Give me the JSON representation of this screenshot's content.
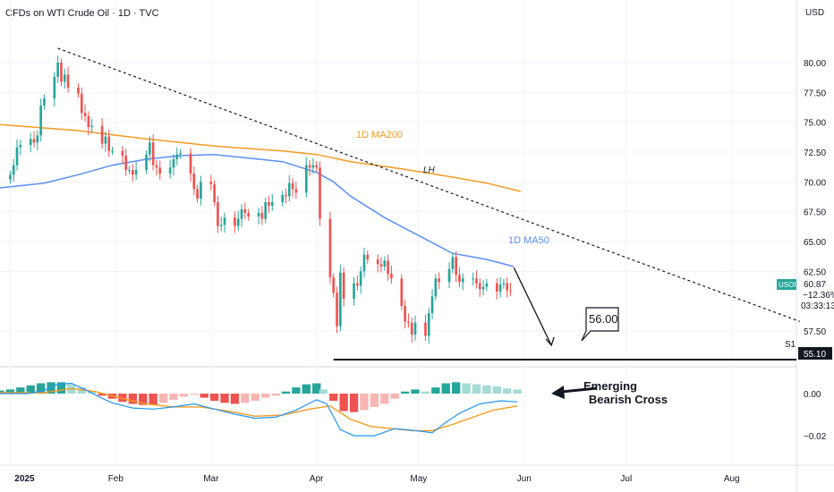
{
  "header": {
    "title": "CFDs on WTI Crude Oil · 1D · TVC",
    "currency": "USD"
  },
  "colors": {
    "up": "#26a69a",
    "down": "#ef5350",
    "ma50": "#5b8ff9",
    "ma200": "#f59a23",
    "histUpStrong": "#26a69a",
    "histUpWeak": "#a5dbd5",
    "histDownStrong": "#ef5350",
    "histDownWeak": "#f7b5b3"
  },
  "chart_data": [
    {
      "type": "candlestick",
      "title": "CFDs on WTI Crude Oil · 1D · TVC",
      "y_ticks": [
        "80.00",
        "77.50",
        "75.00",
        "72.50",
        "70.00",
        "67.50",
        "65.00",
        "62.50",
        "57.50"
      ],
      "ylim": [
        54.5,
        83.0
      ],
      "x_ticks": [
        "2025",
        "Feb",
        "Mar",
        "Apr",
        "May",
        "Jun",
        "Jul",
        "Aug"
      ],
      "x_tick_days": [
        0,
        31,
        59,
        90,
        120,
        151,
        181,
        212
      ],
      "xlim": [
        -3,
        231
      ],
      "closes": [
        [
          0,
          70.6
        ],
        [
          1,
          71.4
        ],
        [
          2,
          72.9
        ],
        [
          3,
          73.1
        ],
        [
          6,
          73.6
        ],
        [
          7,
          73.3
        ],
        [
          8,
          73.9
        ],
        [
          9,
          76.4
        ],
        [
          10,
          77.0
        ],
        [
          13,
          78.8
        ],
        [
          14,
          80.0
        ],
        [
          15,
          78.4
        ],
        [
          16,
          79.0
        ],
        [
          17,
          77.9
        ],
        [
          20,
          77.4
        ],
        [
          21,
          75.8
        ],
        [
          22,
          75.5
        ],
        [
          23,
          74.6
        ],
        [
          24,
          74.7
        ],
        [
          27,
          73.2
        ],
        [
          28,
          73.8
        ],
        [
          29,
          72.6
        ],
        [
          30,
          72.6
        ],
        [
          33,
          72.2
        ],
        [
          34,
          71.0
        ],
        [
          35,
          71.0
        ],
        [
          36,
          70.6
        ],
        [
          37,
          71.0
        ],
        [
          40,
          72.3
        ],
        [
          41,
          73.3
        ],
        [
          42,
          71.4
        ],
        [
          43,
          71.2
        ],
        [
          44,
          70.7
        ],
        [
          47,
          71.2
        ],
        [
          48,
          71.9
        ],
        [
          49,
          72.3
        ],
        [
          50,
          72.4
        ],
        [
          53,
          70.7
        ],
        [
          54,
          69.4
        ],
        [
          55,
          68.6
        ],
        [
          56,
          70.0
        ],
        [
          59,
          69.8
        ],
        [
          60,
          68.3
        ],
        [
          61,
          66.3
        ],
        [
          62,
          66.4
        ],
        [
          63,
          67.0
        ],
        [
          66,
          66.3
        ],
        [
          67,
          66.9
        ],
        [
          68,
          67.7
        ],
        [
          69,
          67.4
        ],
        [
          70,
          67.1
        ],
        [
          73,
          67.4
        ],
        [
          74,
          66.9
        ],
        [
          75,
          68.3
        ],
        [
          76,
          68.0
        ],
        [
          77,
          68.3
        ],
        [
          80,
          68.9
        ],
        [
          81,
          68.8
        ],
        [
          82,
          69.9
        ],
        [
          83,
          69.4
        ],
        [
          84,
          69.1
        ],
        [
          87,
          71.4
        ],
        [
          88,
          71.2
        ],
        [
          89,
          71.4
        ],
        [
          90,
          71.2
        ],
        [
          91,
          66.9
        ],
        [
          94,
          61.99
        ],
        [
          95,
          60.7
        ],
        [
          96,
          57.9
        ],
        [
          97,
          62.4
        ],
        [
          98,
          60.2
        ],
        [
          101,
          61.5
        ],
        [
          102,
          61.3
        ],
        [
          103,
          62.5
        ],
        [
          104,
          63.9
        ],
        [
          105,
          63.5
        ],
        [
          108,
          63.1
        ],
        [
          109,
          62.9
        ],
        [
          110,
          63.4
        ],
        [
          111,
          62.3
        ],
        [
          112,
          61.9
        ],
        [
          115,
          59.6
        ],
        [
          116,
          58.3
        ],
        [
          117,
          58.2
        ],
        [
          118,
          57.2
        ],
        [
          119,
          58.2
        ],
        [
          122,
          57.1
        ],
        [
          123,
          59.0
        ],
        [
          124,
          60.4
        ],
        [
          125,
          61.9
        ],
        [
          126,
          61.6
        ],
        [
          129,
          62.7
        ],
        [
          130,
          63.7
        ],
        [
          131,
          62.2
        ],
        [
          132,
          61.6
        ],
        [
          133,
          61.9
        ],
        [
          136,
          61.9
        ],
        [
          137,
          61.5
        ],
        [
          138,
          61.0
        ],
        [
          139,
          61.2
        ],
        [
          140,
          61.5
        ],
        [
          143,
          60.8
        ],
        [
          144,
          61.4
        ],
        [
          145,
          61.5
        ],
        [
          146,
          60.9
        ],
        [
          147,
          60.87
        ]
      ],
      "series": [
        {
          "name": "1D MA200",
          "points": [
            [
              -3,
              74.8
            ],
            [
              20,
              74.3
            ],
            [
              40,
              73.6
            ],
            [
              60,
              73.0
            ],
            [
              80,
              72.6
            ],
            [
              90,
              72.3
            ],
            [
              100,
              71.7
            ],
            [
              115,
              71.1
            ],
            [
              130,
              70.4
            ],
            [
              140,
              69.9
            ],
            [
              150,
              69.2
            ]
          ]
        },
        {
          "name": "1D MA50",
          "points": [
            [
              -3,
              69.5
            ],
            [
              10,
              69.9
            ],
            [
              20,
              70.6
            ],
            [
              30,
              71.4
            ],
            [
              40,
              71.9
            ],
            [
              50,
              72.2
            ],
            [
              60,
              72.3
            ],
            [
              70,
              72.0
            ],
            [
              80,
              71.7
            ],
            [
              90,
              70.8
            ],
            [
              95,
              70.0
            ],
            [
              100,
              68.8
            ],
            [
              110,
              67.0
            ],
            [
              120,
              65.5
            ],
            [
              130,
              64.0
            ],
            [
              140,
              63.5
            ],
            [
              148,
              62.9
            ]
          ]
        }
      ],
      "annotations": [
        "1D MA200",
        "1D MA50",
        "LH",
        "56.00",
        "S1"
      ],
      "price_label": {
        "symbol": "USOIL",
        "price": "60.87",
        "change": "−12.36%",
        "countdown": "03:33:13"
      },
      "support_label": {
        "value": "55.10",
        "y": 55.1
      },
      "target_label": {
        "value": "56.00",
        "y": 56.0
      },
      "trendline": {
        "from": [
          14,
          81.2
        ],
        "to": [
          232,
          58.3
        ]
      }
    },
    {
      "type": "macd",
      "y_ticks": [
        "0.00",
        "−0.02"
      ],
      "histogram": [
        [
          -3,
          0.3
        ],
        [
          0,
          0.4
        ],
        [
          3,
          0.6
        ],
        [
          6,
          0.8
        ],
        [
          9,
          1.0
        ],
        [
          12,
          1.1
        ],
        [
          15,
          1.1
        ],
        [
          18,
          0.9
        ],
        [
          21,
          0.6
        ],
        [
          24,
          0.2
        ],
        [
          27,
          -0.2
        ],
        [
          30,
          -0.5
        ],
        [
          33,
          -0.8
        ],
        [
          36,
          -1.0
        ],
        [
          39,
          -1.1
        ],
        [
          42,
          -1.1
        ],
        [
          45,
          -0.9
        ],
        [
          48,
          -0.6
        ],
        [
          51,
          -0.3
        ],
        [
          54,
          -0.1
        ],
        [
          57,
          -0.4
        ],
        [
          60,
          -0.7
        ],
        [
          63,
          -0.9
        ],
        [
          66,
          -1.0
        ],
        [
          69,
          -0.9
        ],
        [
          72,
          -0.7
        ],
        [
          75,
          -0.4
        ],
        [
          78,
          -0.2
        ],
        [
          81,
          0.2
        ],
        [
          84,
          0.6
        ],
        [
          87,
          0.9
        ],
        [
          90,
          1.0
        ],
        [
          92,
          0.4
        ],
        [
          95,
          -0.7
        ],
        [
          98,
          -1.7
        ],
        [
          101,
          -1.8
        ],
        [
          104,
          -1.6
        ],
        [
          107,
          -1.3
        ],
        [
          110,
          -1.0
        ],
        [
          113,
          -0.5
        ],
        [
          116,
          0.2
        ],
        [
          119,
          0.4
        ],
        [
          122,
          0.2
        ],
        [
          125,
          0.6
        ],
        [
          128,
          1.0
        ],
        [
          131,
          1.1
        ],
        [
          134,
          1.0
        ],
        [
          137,
          0.9
        ],
        [
          140,
          0.8
        ],
        [
          143,
          0.7
        ],
        [
          146,
          0.5
        ],
        [
          149,
          0.4
        ]
      ],
      "macd": [
        [
          -3,
          0.0
        ],
        [
          5,
          0.0
        ],
        [
          10,
          0.3
        ],
        [
          14,
          0.9
        ],
        [
          18,
          1.0
        ],
        [
          22,
          0.4
        ],
        [
          26,
          -0.3
        ],
        [
          30,
          -0.9
        ],
        [
          36,
          -1.4
        ],
        [
          42,
          -1.5
        ],
        [
          48,
          -1.3
        ],
        [
          54,
          -1.0
        ],
        [
          60,
          -1.5
        ],
        [
          66,
          -2.0
        ],
        [
          72,
          -2.4
        ],
        [
          78,
          -2.3
        ],
        [
          84,
          -1.6
        ],
        [
          90,
          -0.6
        ],
        [
          93,
          -1.0
        ],
        [
          97,
          -3.5
        ],
        [
          101,
          -4.1
        ],
        [
          107,
          -4.1
        ],
        [
          113,
          -3.4
        ],
        [
          119,
          -3.6
        ],
        [
          124,
          -3.8
        ],
        [
          128,
          -2.8
        ],
        [
          132,
          -1.9
        ],
        [
          138,
          -1.0
        ],
        [
          144,
          -0.7
        ],
        [
          149,
          -0.8
        ]
      ],
      "signal": [
        [
          -3,
          0.1
        ],
        [
          10,
          0.1
        ],
        [
          18,
          0.5
        ],
        [
          25,
          0.2
        ],
        [
          32,
          -0.4
        ],
        [
          40,
          -1.0
        ],
        [
          48,
          -1.3
        ],
        [
          56,
          -1.3
        ],
        [
          64,
          -1.7
        ],
        [
          72,
          -2.2
        ],
        [
          80,
          -2.1
        ],
        [
          88,
          -1.5
        ],
        [
          94,
          -1.2
        ],
        [
          100,
          -2.5
        ],
        [
          106,
          -3.2
        ],
        [
          112,
          -3.4
        ],
        [
          118,
          -3.6
        ],
        [
          124,
          -3.6
        ],
        [
          130,
          -3.0
        ],
        [
          136,
          -2.3
        ],
        [
          142,
          -1.6
        ],
        [
          149,
          -1.2
        ]
      ],
      "annotation": [
        "Emerging",
        "Bearish Cross"
      ]
    }
  ]
}
